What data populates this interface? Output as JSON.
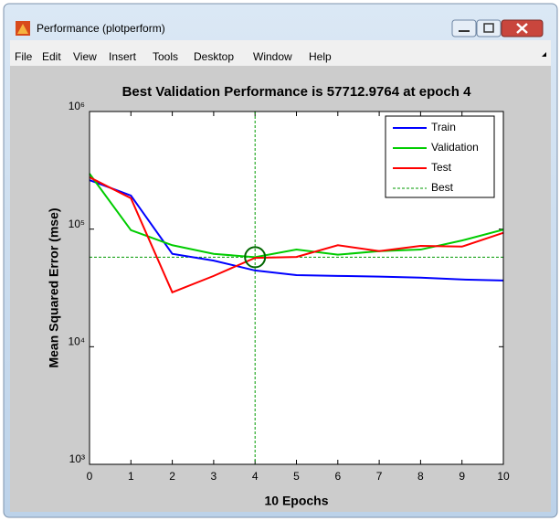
{
  "window": {
    "title": "Performance (plotperform)",
    "menu": [
      "File",
      "Edit",
      "View",
      "Insert",
      "Tools",
      "Desktop",
      "Window",
      "Help"
    ]
  },
  "chart_data": {
    "type": "line",
    "title": "Best Validation Performance is 57712.9764 at epoch 4",
    "xlabel": "10 Epochs",
    "ylabel": "Mean Squared Error  (mse)",
    "x": [
      0,
      1,
      2,
      3,
      4,
      5,
      6,
      7,
      8,
      9,
      10
    ],
    "series": [
      {
        "name": "Train",
        "color": "#0000ff",
        "values": [
          261000,
          193000,
          61600,
          54000,
          44500,
          40600,
          40000,
          39500,
          38700,
          37300,
          36600
        ]
      },
      {
        "name": "Validation",
        "color": "#00cc00",
        "values": [
          296000,
          98000,
          73000,
          61600,
          57712.9764,
          67000,
          60600,
          65000,
          67000,
          80000,
          99000
        ]
      },
      {
        "name": "Test",
        "color": "#ff0000",
        "values": [
          276000,
          183000,
          29000,
          40000,
          57000,
          58000,
          73000,
          65000,
          72000,
          71000,
          93000
        ]
      }
    ],
    "best": {
      "name": "Best",
      "color": "#009900",
      "epoch": 4,
      "value": 57712.9764
    },
    "xlim": [
      0,
      10
    ],
    "xticks": [
      0,
      1,
      2,
      3,
      4,
      5,
      6,
      7,
      8,
      9,
      10
    ],
    "ylim": [
      1000,
      1000000
    ],
    "log_y": true,
    "yticks": [
      {
        "value": 1000,
        "label": "10³"
      },
      {
        "value": 10000,
        "label": "10⁴"
      },
      {
        "value": 100000,
        "label": "10⁵"
      },
      {
        "value": 1000000,
        "label": "10⁶"
      }
    ],
    "legend": "upper right"
  }
}
